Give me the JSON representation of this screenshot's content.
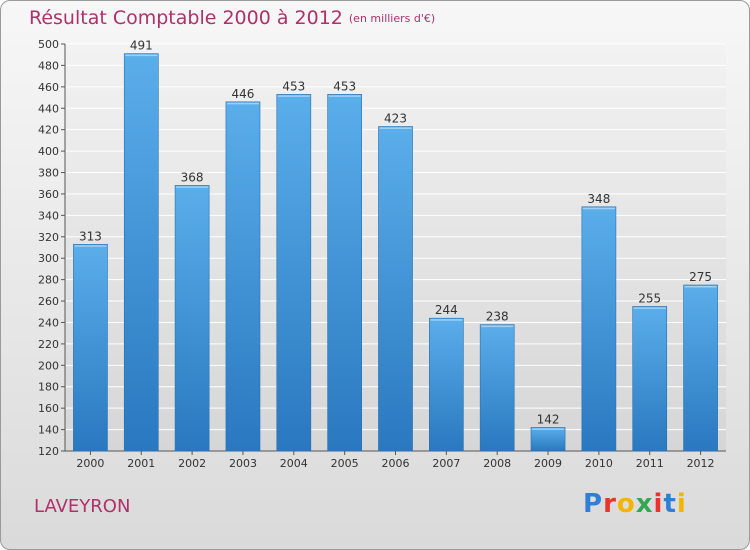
{
  "header": {
    "title": "Résultat Comptable 2000 à 2012",
    "subtitle": "(en milliers d'€)"
  },
  "footer": {
    "place": "LAVEYRON",
    "logo_letters": [
      "P",
      "r",
      "o",
      "x",
      "i",
      "t",
      "i"
    ],
    "logo_colors": [
      "#2f7fd8",
      "#e8342a",
      "#f4b400",
      "#33a852",
      "#e8342a",
      "#2f7fd8",
      "#f4b400"
    ]
  },
  "chart_data": {
    "type": "bar",
    "title": "Résultat Comptable 2000 à 2012",
    "subtitle": "(en milliers d'€)",
    "categories": [
      "2000",
      "2001",
      "2002",
      "2003",
      "2004",
      "2005",
      "2006",
      "2007",
      "2008",
      "2009",
      "2010",
      "2011",
      "2012"
    ],
    "values": [
      313,
      491,
      368,
      446,
      453,
      453,
      423,
      244,
      238,
      142,
      348,
      255,
      275
    ],
    "xlabel": "",
    "ylabel": "",
    "ylim": [
      120,
      500
    ],
    "yticks": [
      120,
      140,
      160,
      180,
      200,
      220,
      240,
      260,
      280,
      300,
      320,
      340,
      360,
      380,
      400,
      420,
      440,
      460,
      480,
      500
    ],
    "grid": true,
    "bar_color": "#3e8fdc",
    "grid_color": "#ffffff"
  }
}
